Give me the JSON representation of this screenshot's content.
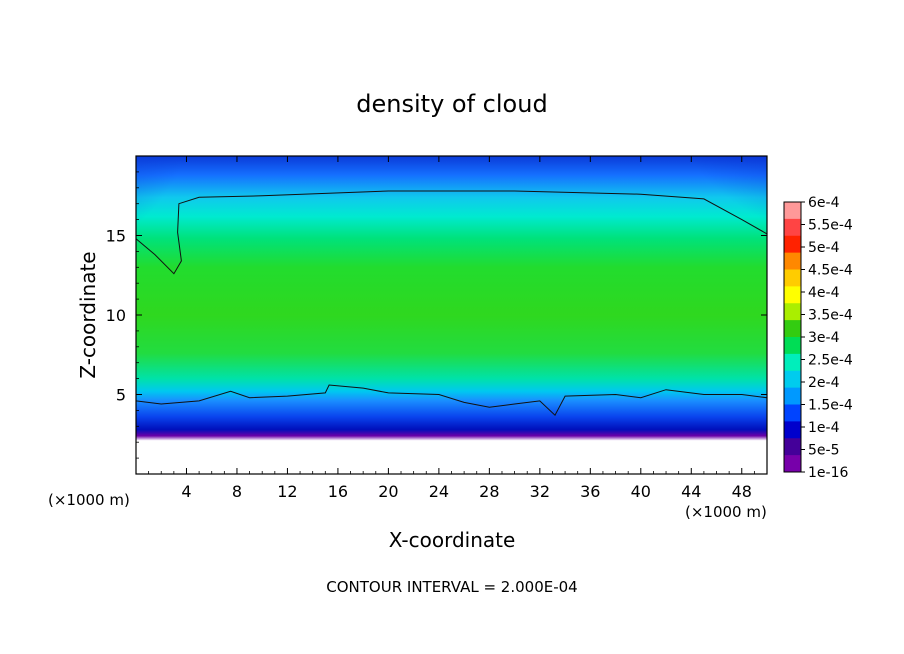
{
  "chart_data": {
    "type": "heatmap",
    "title": "density of cloud",
    "xlabel": "X-coordinate",
    "ylabel": "Z-coordinate",
    "x_unit_left": "(×1000 m)",
    "x_unit_right": "(×1000 m)",
    "footer": "CONTOUR INTERVAL = 2.000E-04",
    "xlim": [
      0,
      50
    ],
    "ylim": [
      0,
      20
    ],
    "x_ticks": [
      4,
      8,
      12,
      16,
      20,
      24,
      28,
      32,
      36,
      40,
      44,
      48
    ],
    "y_ticks": [
      5,
      10,
      15
    ],
    "contour_interval": 0.0002,
    "colorbar": {
      "labels": [
        "6e-4",
        "5.5e-4",
        "5e-4",
        "4.5e-4",
        "4e-4",
        "3.5e-4",
        "3e-4",
        "2.5e-4",
        "2e-4",
        "1.5e-4",
        "1e-4",
        "5e-5",
        "1e-16"
      ],
      "colors": [
        "#ff9999",
        "#ff4444",
        "#ff2200",
        "#ff8800",
        "#ffcc00",
        "#ffff00",
        "#aaee00",
        "#33cc11",
        "#00dd55",
        "#00eebb",
        "#00ccee",
        "#0099ff",
        "#0044ff",
        "#0000cc",
        "#440099",
        "#7700aa"
      ]
    },
    "contour_lines": [
      {
        "level": 0.0002,
        "points": [
          [
            0,
            14.8
          ],
          [
            1.5,
            13.8
          ],
          [
            3,
            12.6
          ],
          [
            3.6,
            13.4
          ],
          [
            3.3,
            15.2
          ],
          [
            3.4,
            17.0
          ],
          [
            5,
            17.4
          ],
          [
            10,
            17.5
          ],
          [
            20,
            17.8
          ],
          [
            30,
            17.8
          ],
          [
            40,
            17.6
          ],
          [
            45,
            17.3
          ],
          [
            48,
            16.0
          ],
          [
            50,
            15.1
          ]
        ]
      },
      {
        "level": 0.0002,
        "points": [
          [
            0,
            4.6
          ],
          [
            2,
            4.4
          ],
          [
            5,
            4.6
          ],
          [
            7.5,
            5.2
          ],
          [
            9,
            4.8
          ],
          [
            12,
            4.9
          ],
          [
            15,
            5.1
          ],
          [
            15.3,
            5.6
          ],
          [
            18,
            5.4
          ],
          [
            20,
            5.1
          ],
          [
            24,
            5.0
          ],
          [
            26,
            4.5
          ],
          [
            28,
            4.2
          ],
          [
            30,
            4.4
          ],
          [
            32,
            4.6
          ],
          [
            33.2,
            3.7
          ],
          [
            34,
            4.9
          ],
          [
            38,
            5.0
          ],
          [
            40,
            4.8
          ],
          [
            42,
            5.3
          ],
          [
            45,
            5.0
          ],
          [
            48,
            5.0
          ],
          [
            50,
            4.8
          ]
        ]
      }
    ]
  }
}
